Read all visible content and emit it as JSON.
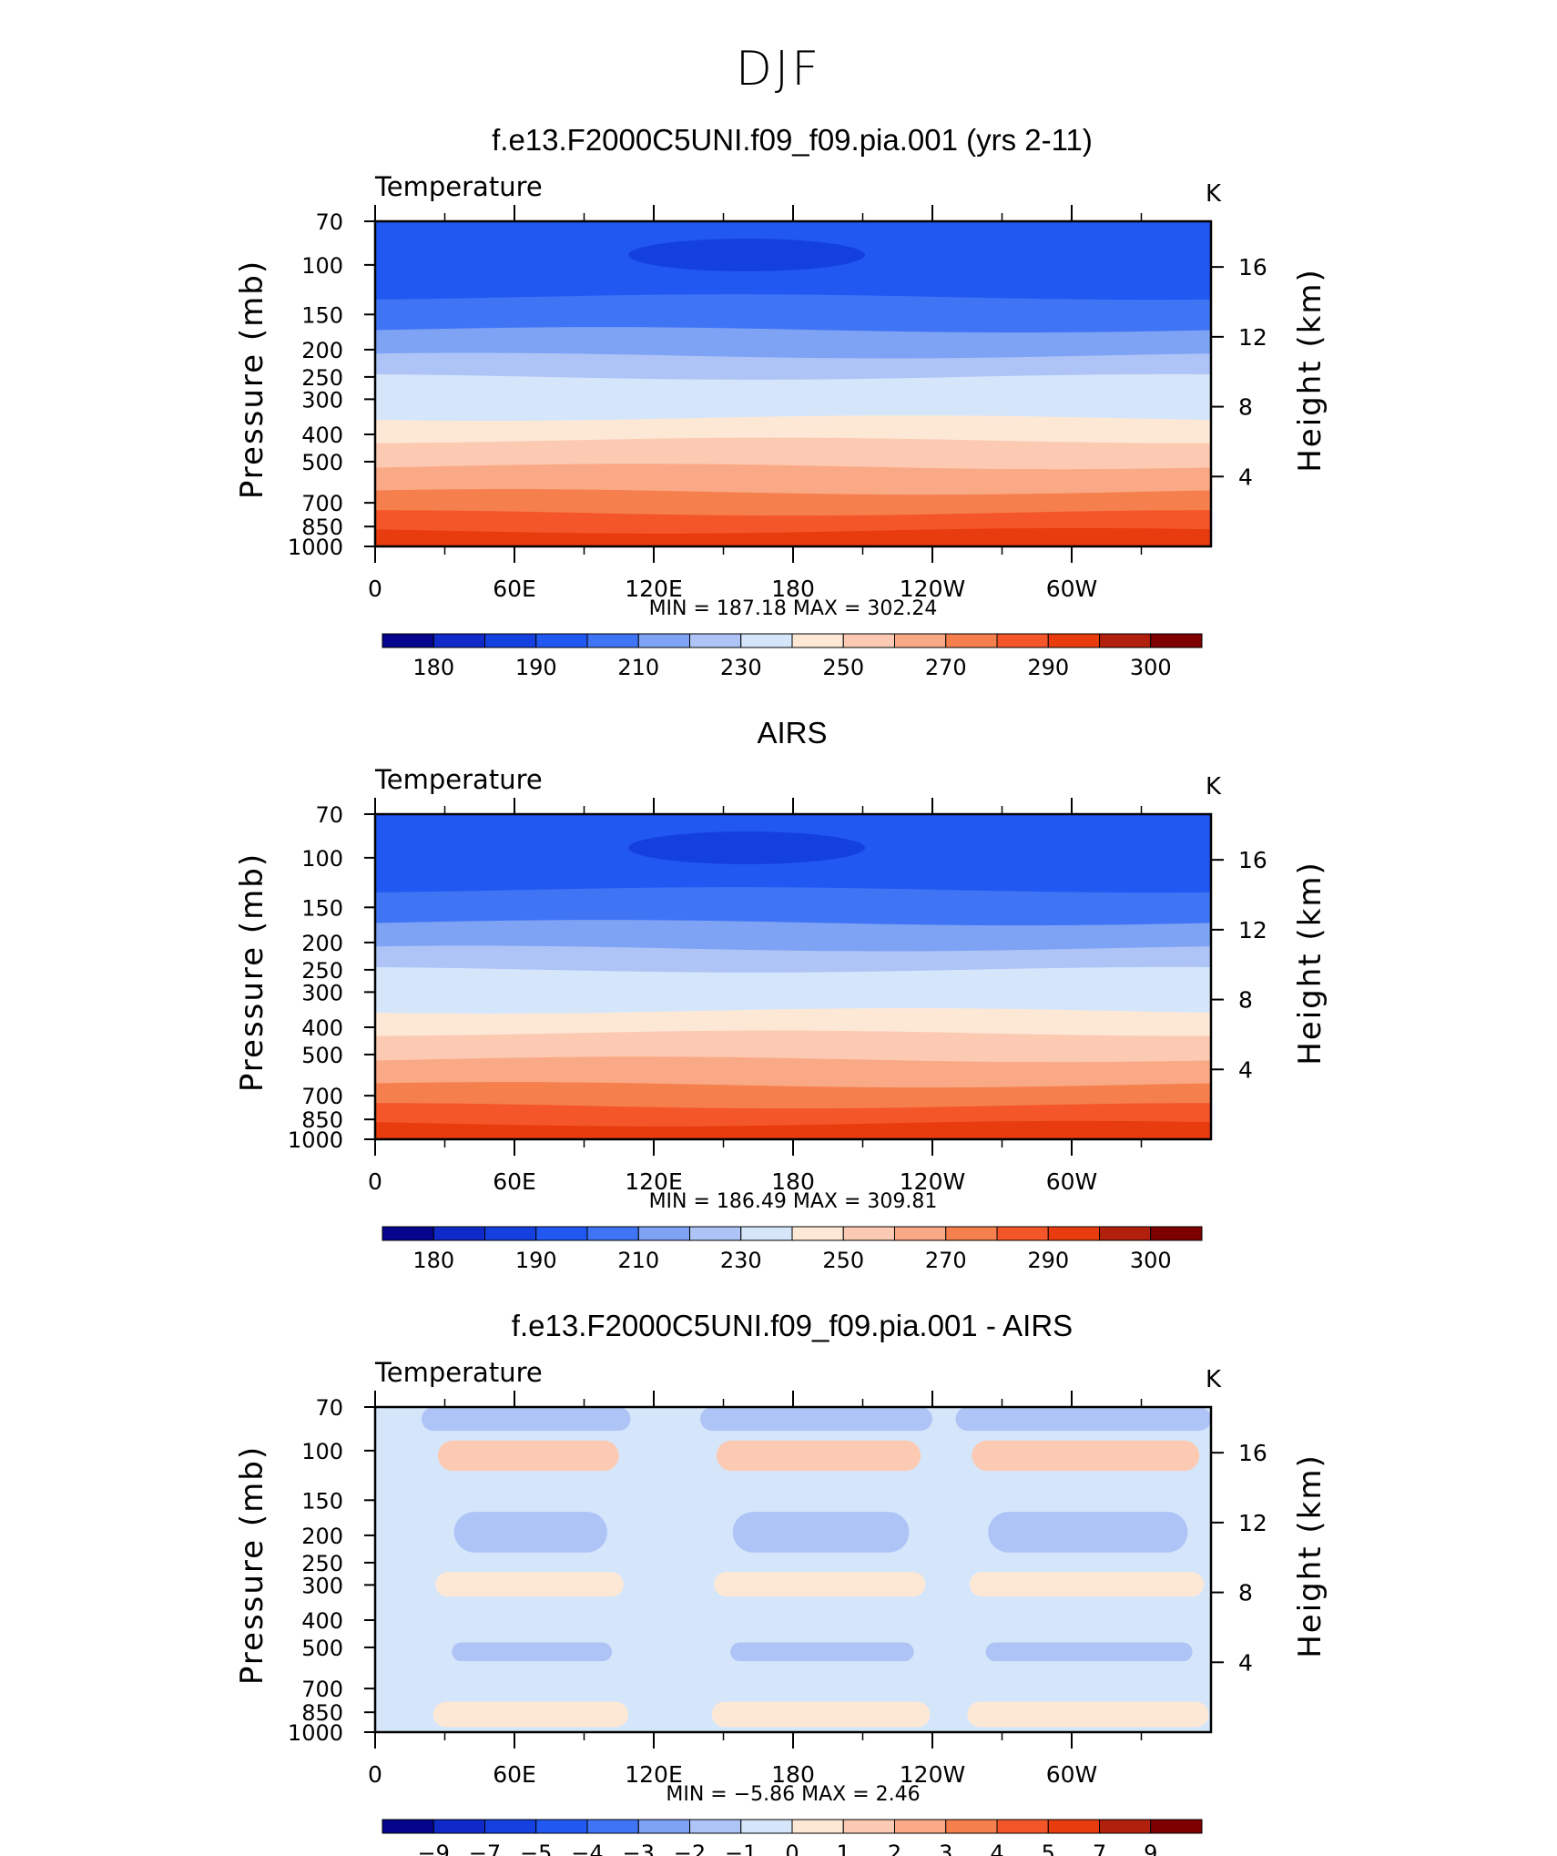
{
  "page_title": "DJF",
  "chart_data": [
    {
      "type": "contour",
      "title": "f.e13.F2000C5UNI.f09_f09.pia.001 (yrs 2-11)",
      "left_label": "Temperature",
      "units": "K",
      "ylabel": "Pressure (mb)",
      "y2label": "Height (km)",
      "xticks": [
        "0",
        "60E",
        "120E",
        "180",
        "120W",
        "60W"
      ],
      "xtick_lon": [
        0,
        60,
        120,
        180,
        240,
        300
      ],
      "xlim": [
        0,
        360
      ],
      "yticks": [
        "70",
        "100",
        "150",
        "200",
        "250",
        "300",
        "400",
        "500",
        "700",
        "850",
        "1000"
      ],
      "ytick_p": [
        70,
        100,
        150,
        200,
        250,
        300,
        400,
        500,
        700,
        850,
        1000
      ],
      "ylim": [
        1000,
        70
      ],
      "y2ticks": [
        "16",
        "12",
        "8",
        "4"
      ],
      "y2tick_km": [
        16,
        12,
        8,
        4
      ],
      "stats": "MIN = 187.18   MAX = 302.24",
      "min": 187.18,
      "max": 302.24,
      "colorbar": {
        "labels": [
          "180",
          "190",
          "210",
          "230",
          "250",
          "270",
          "290",
          "300"
        ],
        "colors": [
          "#04058c",
          "#0f2ac8",
          "#1540e0",
          "#2158f2",
          "#3f74f5",
          "#7ea2f4",
          "#aec4f6",
          "#d5e6fb",
          "#fde8d6",
          "#fccab2",
          "#faa986",
          "#f6804d",
          "#f4562a",
          "#e83b0e",
          "#b11f0d",
          "#7f0000"
        ]
      },
      "profile": [
        {
          "p": 70,
          "v": 196
        },
        {
          "p": 100,
          "v": 196
        },
        {
          "p": 130,
          "v": 205
        },
        {
          "p": 170,
          "v": 215
        },
        {
          "p": 210,
          "v": 222
        },
        {
          "p": 250,
          "v": 230
        },
        {
          "p": 300,
          "v": 238
        },
        {
          "p": 350,
          "v": 246
        },
        {
          "p": 420,
          "v": 257
        },
        {
          "p": 520,
          "v": 266
        },
        {
          "p": 640,
          "v": 276
        },
        {
          "p": 760,
          "v": 283
        },
        {
          "p": 880,
          "v": 290
        },
        {
          "p": 1000,
          "v": 296
        }
      ]
    },
    {
      "type": "contour",
      "title": "AIRS",
      "left_label": "Temperature",
      "units": "K",
      "ylabel": "Pressure (mb)",
      "y2label": "Height (km)",
      "xticks": [
        "0",
        "60E",
        "120E",
        "180",
        "120W",
        "60W"
      ],
      "xtick_lon": [
        0,
        60,
        120,
        180,
        240,
        300
      ],
      "xlim": [
        0,
        360
      ],
      "yticks": [
        "70",
        "100",
        "150",
        "200",
        "250",
        "300",
        "400",
        "500",
        "700",
        "850",
        "1000"
      ],
      "ytick_p": [
        70,
        100,
        150,
        200,
        250,
        300,
        400,
        500,
        700,
        850,
        1000
      ],
      "ylim": [
        1000,
        70
      ],
      "y2ticks": [
        "16",
        "12",
        "8",
        "4"
      ],
      "y2tick_km": [
        16,
        12,
        8,
        4
      ],
      "stats": "MIN = 186.49   MAX = 309.81",
      "min": 186.49,
      "max": 309.81,
      "colorbar": {
        "labels": [
          "180",
          "190",
          "210",
          "230",
          "250",
          "270",
          "290",
          "300"
        ],
        "colors": [
          "#04058c",
          "#0f2ac8",
          "#1540e0",
          "#2158f2",
          "#3f74f5",
          "#7ea2f4",
          "#aec4f6",
          "#d5e6fb",
          "#fde8d6",
          "#fccab2",
          "#faa986",
          "#f6804d",
          "#f4562a",
          "#e83b0e",
          "#b11f0d",
          "#7f0000"
        ]
      },
      "profile": [
        {
          "p": 70,
          "v": 196
        },
        {
          "p": 100,
          "v": 196
        },
        {
          "p": 130,
          "v": 205
        },
        {
          "p": 170,
          "v": 215
        },
        {
          "p": 210,
          "v": 222
        },
        {
          "p": 250,
          "v": 230
        },
        {
          "p": 300,
          "v": 238
        },
        {
          "p": 350,
          "v": 246
        },
        {
          "p": 420,
          "v": 257
        },
        {
          "p": 520,
          "v": 266
        },
        {
          "p": 640,
          "v": 276
        },
        {
          "p": 760,
          "v": 283
        },
        {
          "p": 880,
          "v": 290
        },
        {
          "p": 1000,
          "v": 297
        }
      ]
    },
    {
      "type": "contour",
      "title": "f.e13.F2000C5UNI.f09_f09.pia.001 - AIRS",
      "left_label": "Temperature",
      "units": "K",
      "ylabel": "Pressure (mb)",
      "y2label": "Height (km)",
      "xticks": [
        "0",
        "60E",
        "120E",
        "180",
        "120W",
        "60W"
      ],
      "xtick_lon": [
        0,
        60,
        120,
        180,
        240,
        300
      ],
      "xlim": [
        0,
        360
      ],
      "yticks": [
        "70",
        "100",
        "150",
        "200",
        "250",
        "300",
        "400",
        "500",
        "700",
        "850",
        "1000"
      ],
      "ytick_p": [
        70,
        100,
        150,
        200,
        250,
        300,
        400,
        500,
        700,
        850,
        1000
      ],
      "ylim": [
        1000,
        70
      ],
      "y2ticks": [
        "16",
        "12",
        "8",
        "4"
      ],
      "y2tick_km": [
        16,
        12,
        8,
        4
      ],
      "stats": "MIN =   −5.86   MAX =     2.46",
      "min": -5.86,
      "max": 2.46,
      "colorbar": {
        "labels": [
          "−9",
          "−7",
          "−5",
          "−4",
          "−3",
          "−2",
          "−1",
          "0",
          "1",
          "2",
          "3",
          "4",
          "5",
          "7",
          "9"
        ],
        "colors": [
          "#04058c",
          "#0f2ac8",
          "#1540e0",
          "#2158f2",
          "#3f74f5",
          "#7ea2f4",
          "#aec4f6",
          "#d5e6fb",
          "#fde8d6",
          "#fccab2",
          "#faa986",
          "#f6804d",
          "#f4562a",
          "#e83b0e",
          "#b11f0d",
          "#7f0000"
        ]
      },
      "anomaly_bands": [
        {
          "p_top": 70,
          "p_bot": 85,
          "color": "#aec4f6"
        },
        {
          "p_top": 92,
          "p_bot": 118,
          "color": "#fccab2"
        },
        {
          "p_top": 165,
          "p_bot": 230,
          "color": "#aec4f6"
        },
        {
          "p_top": 270,
          "p_bot": 330,
          "color": "#fde8d6"
        },
        {
          "p_top": 480,
          "p_bot": 560,
          "color": "#aec4f6"
        },
        {
          "p_top": 780,
          "p_bot": 960,
          "color": "#fde8d6"
        }
      ]
    }
  ]
}
